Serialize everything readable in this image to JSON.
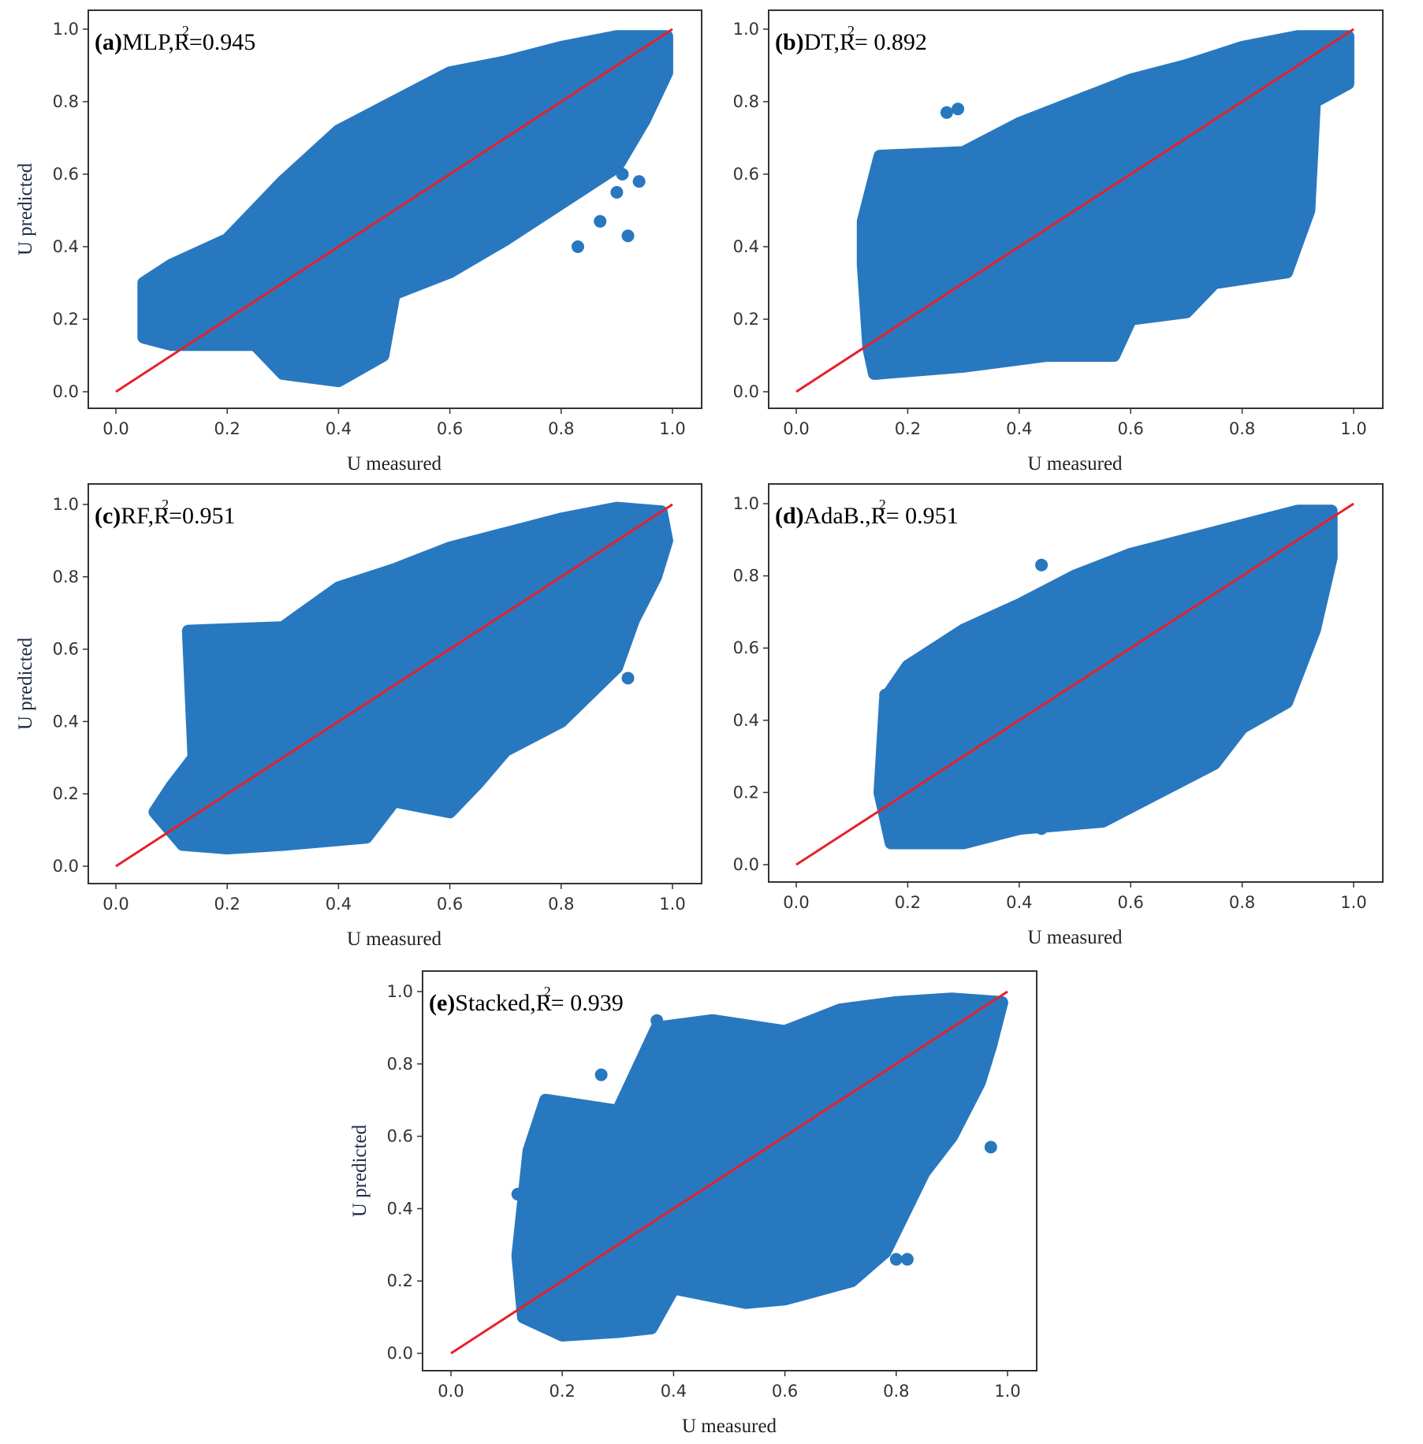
{
  "colors": {
    "points": "#2878c0",
    "identity_line": "#e8202a",
    "frame": "#333333"
  },
  "chart_data": [
    {
      "type": "scatter",
      "panel": "(a)",
      "model": "MLP",
      "r2_text": "=0.945",
      "xlabel": "U measured",
      "ylabel": "U predicted",
      "xlim": [
        0,
        1
      ],
      "ylim": [
        0,
        1
      ],
      "xticks": [
        "0.0",
        "0.2",
        "0.4",
        "0.6",
        "0.8",
        "1.0"
      ],
      "yticks": [
        "0.0",
        "0.2",
        "0.4",
        "0.6",
        "0.8",
        "1.0"
      ],
      "identity_line": [
        [
          0,
          0
        ],
        [
          1,
          1
        ]
      ],
      "point_cloud_outline": [
        [
          0.05,
          0.15
        ],
        [
          0.05,
          0.3
        ],
        [
          0.1,
          0.35
        ],
        [
          0.2,
          0.42
        ],
        [
          0.3,
          0.58
        ],
        [
          0.4,
          0.72
        ],
        [
          0.5,
          0.8
        ],
        [
          0.6,
          0.88
        ],
        [
          0.7,
          0.91
        ],
        [
          0.8,
          0.95
        ],
        [
          0.9,
          0.98
        ],
        [
          0.99,
          0.98
        ],
        [
          0.99,
          0.88
        ],
        [
          0.95,
          0.75
        ],
        [
          0.9,
          0.62
        ],
        [
          0.8,
          0.52
        ],
        [
          0.7,
          0.42
        ],
        [
          0.6,
          0.33
        ],
        [
          0.5,
          0.27
        ],
        [
          0.48,
          0.1
        ],
        [
          0.4,
          0.03
        ],
        [
          0.3,
          0.05
        ],
        [
          0.25,
          0.13
        ],
        [
          0.1,
          0.13
        ]
      ],
      "outliers": [
        [
          0.83,
          0.4
        ],
        [
          0.87,
          0.47
        ],
        [
          0.92,
          0.43
        ],
        [
          0.9,
          0.55
        ],
        [
          0.94,
          0.58
        ],
        [
          0.91,
          0.6
        ]
      ]
    },
    {
      "type": "scatter",
      "panel": "(b)",
      "model": "DT",
      "r2_text": "= 0.892",
      "xlabel": "U measured",
      "ylabel": "",
      "xlim": [
        0,
        1
      ],
      "ylim": [
        0,
        1
      ],
      "xticks": [
        "0.0",
        "0.2",
        "0.4",
        "0.6",
        "0.8",
        "1.0"
      ],
      "yticks": [
        "0.0",
        "0.2",
        "0.4",
        "0.6",
        "0.8",
        "1.0"
      ],
      "identity_line": [
        [
          0,
          0
        ],
        [
          1,
          1
        ]
      ],
      "point_cloud_outline": [
        [
          0.12,
          0.35
        ],
        [
          0.12,
          0.47
        ],
        [
          0.15,
          0.65
        ],
        [
          0.3,
          0.66
        ],
        [
          0.4,
          0.74
        ],
        [
          0.5,
          0.8
        ],
        [
          0.6,
          0.86
        ],
        [
          0.7,
          0.9
        ],
        [
          0.8,
          0.95
        ],
        [
          0.9,
          0.98
        ],
        [
          0.99,
          0.98
        ],
        [
          0.99,
          0.85
        ],
        [
          0.93,
          0.8
        ],
        [
          0.92,
          0.5
        ],
        [
          0.88,
          0.33
        ],
        [
          0.75,
          0.3
        ],
        [
          0.7,
          0.22
        ],
        [
          0.6,
          0.2
        ],
        [
          0.57,
          0.1
        ],
        [
          0.45,
          0.1
        ],
        [
          0.3,
          0.07
        ],
        [
          0.14,
          0.05
        ],
        [
          0.13,
          0.12
        ]
      ],
      "outliers": [
        [
          0.29,
          0.78
        ],
        [
          0.27,
          0.77
        ],
        [
          0.88,
          0.33
        ]
      ]
    },
    {
      "type": "scatter",
      "panel": "(c)",
      "model": "RF",
      "r2_text": "=0.951",
      "xlabel": "U measured",
      "ylabel": "U predicted",
      "xlim": [
        0,
        1
      ],
      "ylim": [
        0,
        1
      ],
      "xticks": [
        "0.0",
        "0.2",
        "0.4",
        "0.6",
        "0.8",
        "1.0"
      ],
      "yticks": [
        "0.0",
        "0.2",
        "0.4",
        "0.6",
        "0.8",
        "1.0"
      ],
      "identity_line": [
        [
          0,
          0
        ],
        [
          1,
          1
        ]
      ],
      "point_cloud_outline": [
        [
          0.07,
          0.15
        ],
        [
          0.1,
          0.22
        ],
        [
          0.14,
          0.3
        ],
        [
          0.13,
          0.65
        ],
        [
          0.3,
          0.66
        ],
        [
          0.4,
          0.77
        ],
        [
          0.5,
          0.82
        ],
        [
          0.6,
          0.88
        ],
        [
          0.7,
          0.92
        ],
        [
          0.8,
          0.96
        ],
        [
          0.9,
          0.99
        ],
        [
          0.98,
          0.98
        ],
        [
          0.99,
          0.9
        ],
        [
          0.97,
          0.8
        ],
        [
          0.93,
          0.68
        ],
        [
          0.9,
          0.55
        ],
        [
          0.8,
          0.4
        ],
        [
          0.7,
          0.32
        ],
        [
          0.65,
          0.23
        ],
        [
          0.6,
          0.15
        ],
        [
          0.5,
          0.18
        ],
        [
          0.45,
          0.08
        ],
        [
          0.3,
          0.06
        ],
        [
          0.2,
          0.05
        ],
        [
          0.12,
          0.06
        ]
      ],
      "outliers": [
        [
          0.54,
          0.84
        ],
        [
          0.41,
          0.77
        ],
        [
          0.92,
          0.52
        ]
      ]
    },
    {
      "type": "scatter",
      "panel": "(d)",
      "model": "AdaB.",
      "r2_text": "= 0.951",
      "xlabel": "U measured",
      "ylabel": "",
      "xlim": [
        0,
        1
      ],
      "ylim": [
        0,
        1
      ],
      "xticks": [
        "0.0",
        "0.2",
        "0.4",
        "0.6",
        "0.8",
        "1.0"
      ],
      "yticks": [
        "0.0",
        "0.2",
        "0.4",
        "0.6",
        "0.8",
        "1.0"
      ],
      "identity_line": [
        [
          0,
          0
        ],
        [
          1,
          1
        ]
      ],
      "point_cloud_outline": [
        [
          0.15,
          0.2
        ],
        [
          0.16,
          0.46
        ],
        [
          0.2,
          0.55
        ],
        [
          0.3,
          0.65
        ],
        [
          0.4,
          0.72
        ],
        [
          0.5,
          0.8
        ],
        [
          0.6,
          0.86
        ],
        [
          0.7,
          0.9
        ],
        [
          0.8,
          0.94
        ],
        [
          0.9,
          0.98
        ],
        [
          0.96,
          0.98
        ],
        [
          0.96,
          0.85
        ],
        [
          0.93,
          0.65
        ],
        [
          0.88,
          0.45
        ],
        [
          0.8,
          0.38
        ],
        [
          0.75,
          0.28
        ],
        [
          0.65,
          0.2
        ],
        [
          0.55,
          0.12
        ],
        [
          0.4,
          0.1
        ],
        [
          0.3,
          0.06
        ],
        [
          0.17,
          0.06
        ]
      ],
      "outliers": [
        [
          0.16,
          0.47
        ],
        [
          0.44,
          0.83
        ],
        [
          0.44,
          0.1
        ]
      ]
    },
    {
      "type": "scatter",
      "panel": "(e)",
      "model": "Stacked",
      "r2_text": "= 0.939",
      "xlabel": "U measured",
      "ylabel": "U predicted",
      "xlim": [
        0,
        1
      ],
      "ylim": [
        0,
        1
      ],
      "xticks": [
        "0.0",
        "0.2",
        "0.4",
        "0.6",
        "0.8",
        "1.0"
      ],
      "yticks": [
        "0.0",
        "0.2",
        "0.4",
        "0.6",
        "0.8",
        "1.0"
      ],
      "identity_line": [
        [
          0,
          0
        ],
        [
          1,
          1
        ]
      ],
      "point_cloud_outline": [
        [
          0.12,
          0.27
        ],
        [
          0.14,
          0.56
        ],
        [
          0.17,
          0.7
        ],
        [
          0.3,
          0.67
        ],
        [
          0.37,
          0.9
        ],
        [
          0.47,
          0.92
        ],
        [
          0.6,
          0.89
        ],
        [
          0.7,
          0.95
        ],
        [
          0.8,
          0.97
        ],
        [
          0.9,
          0.98
        ],
        [
          0.99,
          0.97
        ],
        [
          0.97,
          0.85
        ],
        [
          0.95,
          0.75
        ],
        [
          0.9,
          0.6
        ],
        [
          0.85,
          0.5
        ],
        [
          0.78,
          0.28
        ],
        [
          0.72,
          0.2
        ],
        [
          0.6,
          0.15
        ],
        [
          0.53,
          0.14
        ],
        [
          0.4,
          0.18
        ],
        [
          0.36,
          0.07
        ],
        [
          0.3,
          0.06
        ],
        [
          0.2,
          0.05
        ],
        [
          0.13,
          0.1
        ]
      ],
      "outliers": [
        [
          0.12,
          0.44
        ],
        [
          0.37,
          0.92
        ],
        [
          0.27,
          0.77
        ],
        [
          0.97,
          0.57
        ],
        [
          0.8,
          0.26
        ],
        [
          0.82,
          0.26
        ]
      ]
    }
  ]
}
